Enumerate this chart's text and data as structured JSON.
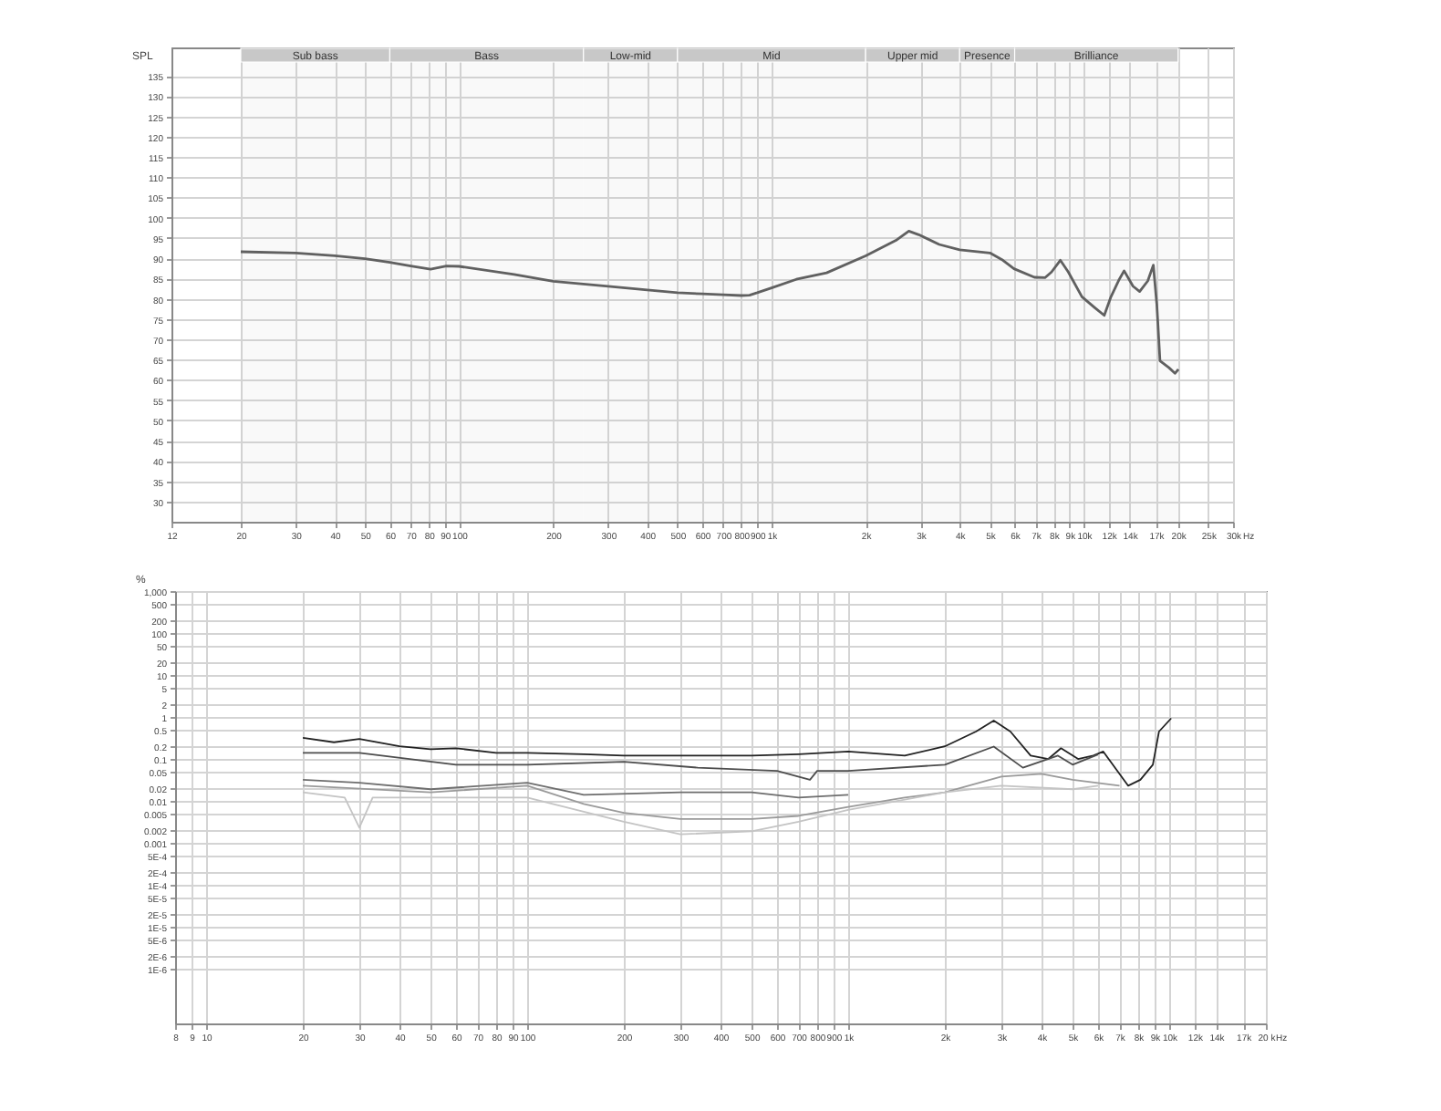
{
  "chart_data": [
    {
      "type": "line",
      "ylabel": "SPL",
      "xlabel": "Hz",
      "log": "x",
      "grid": true,
      "xlim": [
        12,
        30000
      ],
      "ylim": [
        25,
        142
      ],
      "xticks": [
        12,
        20,
        30,
        40,
        50,
        60,
        70,
        80,
        90,
        100,
        200,
        300,
        400,
        500,
        600,
        700,
        800,
        900,
        {
          "value": 1000,
          "label": "1k"
        },
        {
          "value": 2000,
          "label": "2k"
        },
        {
          "value": 3000,
          "label": "3k"
        },
        {
          "value": 4000,
          "label": "4k"
        },
        {
          "value": 5000,
          "label": "5k"
        },
        {
          "value": 6000,
          "label": "6k"
        },
        {
          "value": 7000,
          "label": "7k"
        },
        {
          "value": 8000,
          "label": "8k"
        },
        {
          "value": 9000,
          "label": "9k"
        },
        {
          "value": 10000,
          "label": "10k"
        },
        {
          "value": 12000,
          "label": "12k"
        },
        {
          "value": 14000,
          "label": "14k"
        },
        {
          "value": 17000,
          "label": "17k"
        },
        {
          "value": 20000,
          "label": "20k"
        },
        {
          "value": 25000,
          "label": "25k"
        },
        {
          "value": 30000,
          "label": "30k"
        }
      ],
      "yticks": [
        30,
        35,
        40,
        45,
        50,
        55,
        60,
        65,
        70,
        75,
        80,
        85,
        90,
        95,
        100,
        105,
        110,
        115,
        120,
        125,
        130,
        135
      ],
      "bands": [
        {
          "axis": "x",
          "from": 20,
          "to": 60,
          "label": "Sub bass",
          "color": "#c8c8c8"
        },
        {
          "axis": "x",
          "from": 60,
          "to": 250,
          "label": "Bass",
          "color": "#c8c8c8"
        },
        {
          "axis": "x",
          "from": 250,
          "to": 500,
          "label": "Low-mid",
          "color": "#c8c8c8"
        },
        {
          "axis": "x",
          "from": 500,
          "to": 2000,
          "label": "Mid",
          "color": "#c8c8c8"
        },
        {
          "axis": "x",
          "from": 2000,
          "to": 4000,
          "label": "Upper mid",
          "color": "#c8c8c8"
        },
        {
          "axis": "x",
          "from": 4000,
          "to": 6000,
          "label": "Presence",
          "color": "#c8c8c8"
        },
        {
          "axis": "x",
          "from": 6000,
          "to": 20000,
          "label": "Brilliance",
          "color": "#c8c8c8"
        }
      ],
      "series": [
        {
          "color": "#555555",
          "x": [
            20,
            30,
            40,
            50,
            60,
            70,
            81,
            91,
            100,
            150,
            200,
            300,
            400,
            500,
            600,
            700,
            800,
            850,
            900,
            1000,
            1200,
            1500,
            2000,
            2500,
            2750,
            2960,
            3440,
            4000,
            5000,
            5500,
            5970,
            6940,
            7500,
            7870,
            8400,
            8910,
            9850,
            10830,
            11610,
            12200,
            12970,
            13440,
            14350,
            15070,
            16000,
            16670,
            17100,
            17510,
            18710,
            19550,
            20050
          ],
          "values": [
            91.6,
            91.3,
            90.6,
            89.9,
            89,
            88.1,
            87.3,
            88.1,
            88,
            86,
            84.3,
            83.1,
            82.2,
            81.5,
            81.2,
            81,
            80.8,
            80.9,
            81.5,
            82.7,
            84.8,
            86.4,
            90.6,
            94.4,
            96.7,
            95.8,
            93.4,
            92.1,
            91.3,
            89.5,
            87.4,
            85.3,
            85.2,
            86.6,
            89.5,
            86.6,
            80.5,
            77.8,
            75.9,
            80.5,
            84.8,
            86.9,
            83.1,
            81.8,
            84.4,
            88.3,
            78.7,
            64.7,
            63,
            61.6,
            62.6
          ]
        }
      ]
    },
    {
      "type": "line",
      "ylabel": "%",
      "xlabel": "Hz",
      "log": "xy",
      "grid": true,
      "xlim": [
        8,
        20000
      ],
      "ylim": [
        5e-08,
        1000
      ],
      "xticks": [
        8,
        9,
        10,
        20,
        30,
        40,
        50,
        60,
        70,
        80,
        90,
        100,
        200,
        300,
        400,
        500,
        600,
        700,
        800,
        900,
        {
          "value": 1000,
          "label": "1k"
        },
        {
          "value": 2000,
          "label": "2k"
        },
        {
          "value": 3000,
          "label": "3k"
        },
        {
          "value": 4000,
          "label": "4k"
        },
        {
          "value": 5000,
          "label": "5k"
        },
        {
          "value": 6000,
          "label": "6k"
        },
        {
          "value": 7000,
          "label": "7k"
        },
        {
          "value": 8000,
          "label": "8k"
        },
        {
          "value": 9000,
          "label": "9k"
        },
        {
          "value": 10000,
          "label": "10k"
        },
        {
          "value": 12000,
          "label": "12k"
        },
        {
          "value": 14000,
          "label": "14k"
        },
        {
          "value": 17000,
          "label": "17k"
        },
        {
          "value": 20000,
          "label": "20 k"
        }
      ],
      "yticks": [
        {
          "value": 1000,
          "label": "1,000"
        },
        500,
        200,
        100,
        50,
        20,
        10,
        5,
        2,
        1,
        0.5,
        0.2,
        0.1,
        0.05,
        0.02,
        0.01,
        0.005,
        0.002,
        0.001,
        {
          "value": 0.0005,
          "label": "5E-4"
        },
        {
          "value": 0.0002,
          "label": "2E-4"
        },
        {
          "value": 0.0001,
          "label": "1E-4"
        },
        {
          "value": 5e-05,
          "label": "5E-5"
        },
        {
          "value": 2e-05,
          "label": "2E-5"
        },
        {
          "value": 1e-05,
          "label": "1E-5"
        },
        {
          "value": 5e-06,
          "label": "5E-6"
        },
        {
          "value": 2e-06,
          "label": "2E-6"
        },
        {
          "value": 1e-06,
          "label": "1E-6"
        }
      ],
      "series": [
        {
          "color": "#222222",
          "x": [
            20,
            25,
            30,
            40,
            50,
            60,
            80,
            100,
            150,
            200,
            300,
            500,
            700,
            1000,
            1500,
            2000,
            2500,
            2840,
            3200,
            3700,
            4200,
            4600,
            5200,
            5800,
            6230,
            7450,
            8130,
            8890,
            9290,
            10140
          ],
          "values": [
            0.32,
            0.25,
            0.3,
            0.2,
            0.17,
            0.18,
            0.14,
            0.14,
            0.13,
            0.12,
            0.12,
            0.12,
            0.13,
            0.15,
            0.12,
            0.2,
            0.45,
            0.82,
            0.45,
            0.12,
            0.1,
            0.18,
            0.1,
            0.12,
            0.15,
            0.023,
            0.032,
            0.073,
            0.45,
            0.93
          ]
        },
        {
          "color": "#4d4d4d",
          "x": [
            20,
            30,
            60,
            100,
            200,
            340,
            600,
            760,
            800,
            1000,
            2000,
            2840,
            3500,
            4500,
            5000,
            6000
          ],
          "values": [
            0.14,
            0.14,
            0.073,
            0.073,
            0.086,
            0.062,
            0.052,
            0.032,
            0.052,
            0.052,
            0.073,
            0.197,
            0.062,
            0.12,
            0.073,
            0.128
          ]
        },
        {
          "color": "#6e6e6e",
          "x": [
            20,
            30,
            50,
            100,
            150,
            300,
            500,
            700,
            1000
          ],
          "values": [
            0.032,
            0.027,
            0.019,
            0.027,
            0.014,
            0.016,
            0.016,
            0.012,
            0.014
          ]
        },
        {
          "color": "#9a9a9a",
          "x": [
            20,
            50,
            100,
            150,
            200,
            300,
            500,
            700,
            1000,
            1500,
            2000,
            3000,
            4000,
            5000,
            7000
          ],
          "values": [
            0.023,
            0.016,
            0.023,
            0.0085,
            0.0052,
            0.0037,
            0.0037,
            0.0044,
            0.0072,
            0.012,
            0.016,
            0.038,
            0.044,
            0.032,
            0.023
          ]
        },
        {
          "color": "#c4c4c4",
          "x": [
            20,
            27,
            30,
            33,
            40,
            100,
            200,
            300,
            500,
            700,
            1000,
            2000,
            3000,
            5000,
            6000
          ],
          "values": [
            0.016,
            0.012,
            0.0023,
            0.012,
            0.012,
            0.012,
            0.0032,
            0.0016,
            0.0019,
            0.0032,
            0.0061,
            0.016,
            0.023,
            0.019,
            0.023
          ]
        }
      ]
    }
  ]
}
